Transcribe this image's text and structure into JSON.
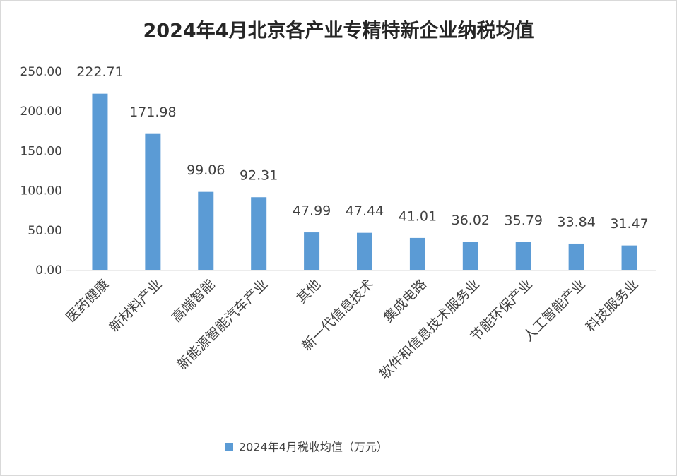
{
  "chart_data": {
    "type": "bar",
    "title": "2024年4月北京各产业专精特新企业纳税均值",
    "categories": [
      "医药健康",
      "新材料产业",
      "高端智能",
      "新能源智能汽车产业",
      "其他",
      "新一代信息技术",
      "集成电路",
      "软件和信息技术服务业",
      "节能环保产业",
      "人工智能产业",
      "科技服务业"
    ],
    "series": [
      {
        "name": "2024年4月税收均值（万元）",
        "color": "#5b9bd5",
        "values": [
          222.71,
          171.98,
          99.06,
          92.31,
          47.99,
          47.44,
          41.01,
          36.02,
          35.79,
          33.84,
          31.47
        ]
      }
    ],
    "ylim": [
      0,
      250
    ],
    "yticks": [
      {
        "value": 0,
        "label": "0.00"
      },
      {
        "value": 50,
        "label": "50.00"
      },
      {
        "value": 100,
        "label": "100.00"
      },
      {
        "value": 150,
        "label": "150.00"
      },
      {
        "value": 200,
        "label": "200.00"
      },
      {
        "value": 250,
        "label": "250.00"
      }
    ],
    "grid": false,
    "legend": "bottom"
  }
}
